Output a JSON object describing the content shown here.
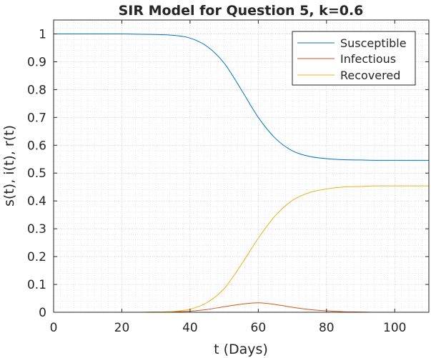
{
  "chart_data": {
    "type": "line",
    "title": "SIR Model for Question 5, k=0.6",
    "xlabel": "t (Days)",
    "ylabel": "s(t), i(t), r(t)",
    "xlim": [
      0,
      110
    ],
    "ylim": [
      0,
      1.05
    ],
    "xticks": [
      0,
      20,
      40,
      60,
      80,
      100
    ],
    "xtick_labels": [
      "0",
      "20",
      "40",
      "60",
      "80",
      "100"
    ],
    "yticks": [
      0,
      0.1,
      0.2,
      0.3,
      0.4,
      0.5,
      0.6,
      0.7,
      0.8,
      0.9,
      1
    ],
    "ytick_labels": [
      "0",
      "0.1",
      "0.2",
      "0.3",
      "0.4",
      "0.5",
      "0.6",
      "0.7",
      "0.8",
      "0.9",
      "1"
    ],
    "grid": true,
    "minor_grid": true,
    "legend_position": "top-right",
    "x": [
      0,
      10,
      20,
      25,
      30,
      35,
      40,
      45,
      50,
      55,
      60,
      65,
      70,
      75,
      80,
      85,
      90,
      95,
      100,
      110
    ],
    "series": [
      {
        "name": "Susceptible",
        "color": "#0072BD",
        "values": [
          1.0,
          1.0,
          1.0,
          0.999,
          0.998,
          0.995,
          0.985,
          0.955,
          0.895,
          0.8,
          0.7,
          0.625,
          0.58,
          0.56,
          0.552,
          0.548,
          0.547,
          0.546,
          0.546,
          0.546
        ]
      },
      {
        "name": "Infectious",
        "color": "#D95319",
        "values": [
          0.0,
          0.0,
          0.0,
          0.0,
          0.001,
          0.002,
          0.004,
          0.01,
          0.02,
          0.029,
          0.034,
          0.028,
          0.018,
          0.01,
          0.005,
          0.002,
          0.001,
          0.0,
          0.0,
          0.0
        ]
      },
      {
        "name": "Recovered",
        "color": "#EDB120",
        "values": [
          0.0,
          0.0,
          0.0,
          0.0,
          0.001,
          0.003,
          0.011,
          0.035,
          0.085,
          0.171,
          0.266,
          0.347,
          0.402,
          0.43,
          0.443,
          0.45,
          0.452,
          0.454,
          0.454,
          0.454
        ]
      }
    ]
  }
}
